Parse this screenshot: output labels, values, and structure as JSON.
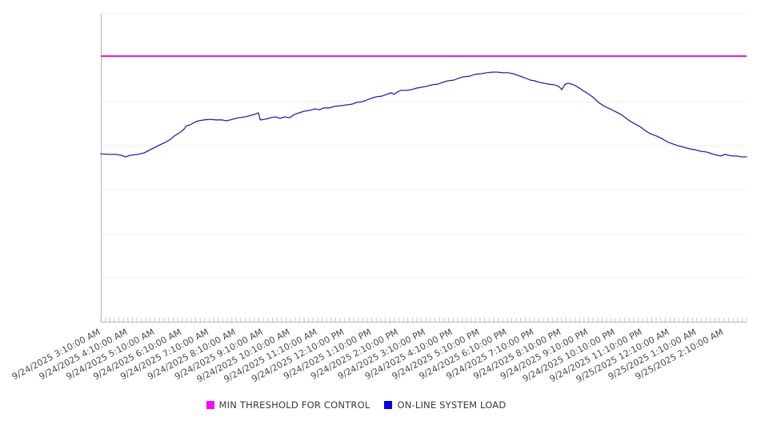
{
  "chart_data": {
    "type": "line",
    "title": "",
    "x_axis": {
      "labels": [
        "9/24/2025 3:10:00 AM",
        "9/24/2025 4:10:00 AM",
        "9/24/2025 5:10:00 AM",
        "9/24/2025 6:10:00 AM",
        "9/24/2025 7:10:00 AM",
        "9/24/2025 8:10:00 AM",
        "9/24/2025 9:10:00 AM",
        "9/24/2025 10:10:00 AM",
        "9/24/2025 11:10:00 AM",
        "9/24/2025 12:10:00 PM",
        "9/24/2025 1:10:00 PM",
        "9/24/2025 2:10:00 PM",
        "9/24/2025 3:10:00 PM",
        "9/24/2025 4:10:00 PM",
        "9/24/2025 5:10:00 PM",
        "9/24/2025 6:10:00 PM",
        "9/24/2025 7:10:00 PM",
        "9/24/2025 8:10:00 PM",
        "9/24/2025 9:10:00 PM",
        "9/24/2025 10:10:00 PM",
        "9/24/2025 11:10:00 PM",
        "9/25/2025 12:10:00 AM",
        "9/25/2025 1:10:00 AM",
        "9/25/2025 2:10:00 AM"
      ],
      "label_interval_minutes": 60,
      "minor_tick_interval_minutes": 10,
      "total_span_minutes": 1430,
      "label_rotation_deg": -28
    },
    "y_axis": {
      "tick_labels_shown": false,
      "unit": "relative load (percent of plot height, no labels shown)",
      "min": 0,
      "max": 100,
      "horizontal_gridline_divisions": 7
    },
    "grid": {
      "horizontal_gridlines": true,
      "vertical_gridlines": false,
      "gridline_color": "#ececec",
      "axis_color": "#b8b8b8",
      "tick_color": "#c4c4c4",
      "label_color": "#4a4a4a"
    },
    "series": [
      {
        "name": "MIN THRESHOLD FOR CONTROL",
        "type": "threshold-line",
        "color": "#dd1bd2",
        "swatch_color": "#ff00ff",
        "value": 86.2
      },
      {
        "name": "ON-LINE SYSTEM LOAD",
        "type": "line",
        "color": "#2323b5",
        "swatch_color": "#0000ee",
        "points": [
          [
            0,
            54.5
          ],
          [
            18,
            54.3
          ],
          [
            35,
            54.3
          ],
          [
            46,
            54
          ],
          [
            55,
            53.5
          ],
          [
            64,
            54
          ],
          [
            82,
            54.3
          ],
          [
            96,
            54.8
          ],
          [
            113,
            56.1
          ],
          [
            131,
            57.4
          ],
          [
            145,
            58.4
          ],
          [
            154,
            59.2
          ],
          [
            163,
            60.3
          ],
          [
            174,
            61.3
          ],
          [
            183,
            62.3
          ],
          [
            190,
            63.6
          ],
          [
            198,
            63.9
          ],
          [
            207,
            64.7
          ],
          [
            216,
            65.2
          ],
          [
            229,
            65.5
          ],
          [
            241,
            65.7
          ],
          [
            255,
            65.5
          ],
          [
            268,
            65.5
          ],
          [
            278,
            65.2
          ],
          [
            291,
            65.7
          ],
          [
            305,
            66.2
          ],
          [
            319,
            66.5
          ],
          [
            333,
            67
          ],
          [
            344,
            67.5
          ],
          [
            349,
            67.8
          ],
          [
            353,
            65.5
          ],
          [
            363,
            65.7
          ],
          [
            376,
            66.2
          ],
          [
            386,
            66.5
          ],
          [
            397,
            66
          ],
          [
            408,
            66.5
          ],
          [
            418,
            66.2
          ],
          [
            429,
            67.3
          ],
          [
            439,
            67.8
          ],
          [
            450,
            68.3
          ],
          [
            462,
            68.6
          ],
          [
            475,
            69.1
          ],
          [
            484,
            68.8
          ],
          [
            494,
            69.4
          ],
          [
            507,
            69.4
          ],
          [
            517,
            69.9
          ],
          [
            532,
            70.1
          ],
          [
            544,
            70.4
          ],
          [
            556,
            70.6
          ],
          [
            567,
            71.2
          ],
          [
            578,
            71.4
          ],
          [
            588,
            71.9
          ],
          [
            599,
            72.5
          ],
          [
            610,
            73
          ],
          [
            622,
            73.2
          ],
          [
            633,
            73.8
          ],
          [
            643,
            74.3
          ],
          [
            649,
            73.8
          ],
          [
            656,
            74.5
          ],
          [
            664,
            75.1
          ],
          [
            677,
            75.1
          ],
          [
            688,
            75.3
          ],
          [
            698,
            75.8
          ],
          [
            711,
            76.1
          ],
          [
            721,
            76.4
          ],
          [
            734,
            76.9
          ],
          [
            746,
            77.1
          ],
          [
            757,
            77.7
          ],
          [
            769,
            78.2
          ],
          [
            781,
            78.4
          ],
          [
            792,
            79
          ],
          [
            804,
            79.5
          ],
          [
            817,
            79.7
          ],
          [
            829,
            80.3
          ],
          [
            842,
            80.5
          ],
          [
            854,
            80.8
          ],
          [
            867,
            81
          ],
          [
            879,
            81
          ],
          [
            890,
            80.8
          ],
          [
            902,
            80.8
          ],
          [
            913,
            80.5
          ],
          [
            923,
            80
          ],
          [
            932,
            79.5
          ],
          [
            943,
            78.9
          ],
          [
            952,
            78.4
          ],
          [
            960,
            78.2
          ],
          [
            971,
            77.7
          ],
          [
            982,
            77.4
          ],
          [
            992,
            77.1
          ],
          [
            1003,
            76.9
          ],
          [
            1014,
            76.4
          ],
          [
            1021,
            75.3
          ],
          [
            1028,
            77.1
          ],
          [
            1035,
            77.4
          ],
          [
            1044,
            77.1
          ],
          [
            1051,
            76.6
          ],
          [
            1060,
            75.8
          ],
          [
            1067,
            75.1
          ],
          [
            1076,
            74.3
          ],
          [
            1084,
            73.5
          ],
          [
            1093,
            72.5
          ],
          [
            1102,
            71.2
          ],
          [
            1113,
            70.1
          ],
          [
            1123,
            69.4
          ],
          [
            1134,
            68.6
          ],
          [
            1145,
            67.8
          ],
          [
            1155,
            67
          ],
          [
            1168,
            65.5
          ],
          [
            1180,
            64.4
          ],
          [
            1193,
            63.4
          ],
          [
            1205,
            62.1
          ],
          [
            1217,
            61
          ],
          [
            1230,
            60.3
          ],
          [
            1242,
            59.5
          ],
          [
            1254,
            58.4
          ],
          [
            1267,
            57.7
          ],
          [
            1279,
            57.1
          ],
          [
            1292,
            56.6
          ],
          [
            1304,
            56.1
          ],
          [
            1317,
            55.8
          ],
          [
            1329,
            55.3
          ],
          [
            1341,
            55.1
          ],
          [
            1354,
            54.5
          ],
          [
            1366,
            54
          ],
          [
            1373,
            53.8
          ],
          [
            1382,
            54.3
          ],
          [
            1391,
            54
          ],
          [
            1400,
            53.8
          ],
          [
            1409,
            53.8
          ],
          [
            1418,
            53.5
          ],
          [
            1430,
            53.5
          ]
        ]
      }
    ],
    "legend": {
      "position": "bottom-center"
    }
  }
}
